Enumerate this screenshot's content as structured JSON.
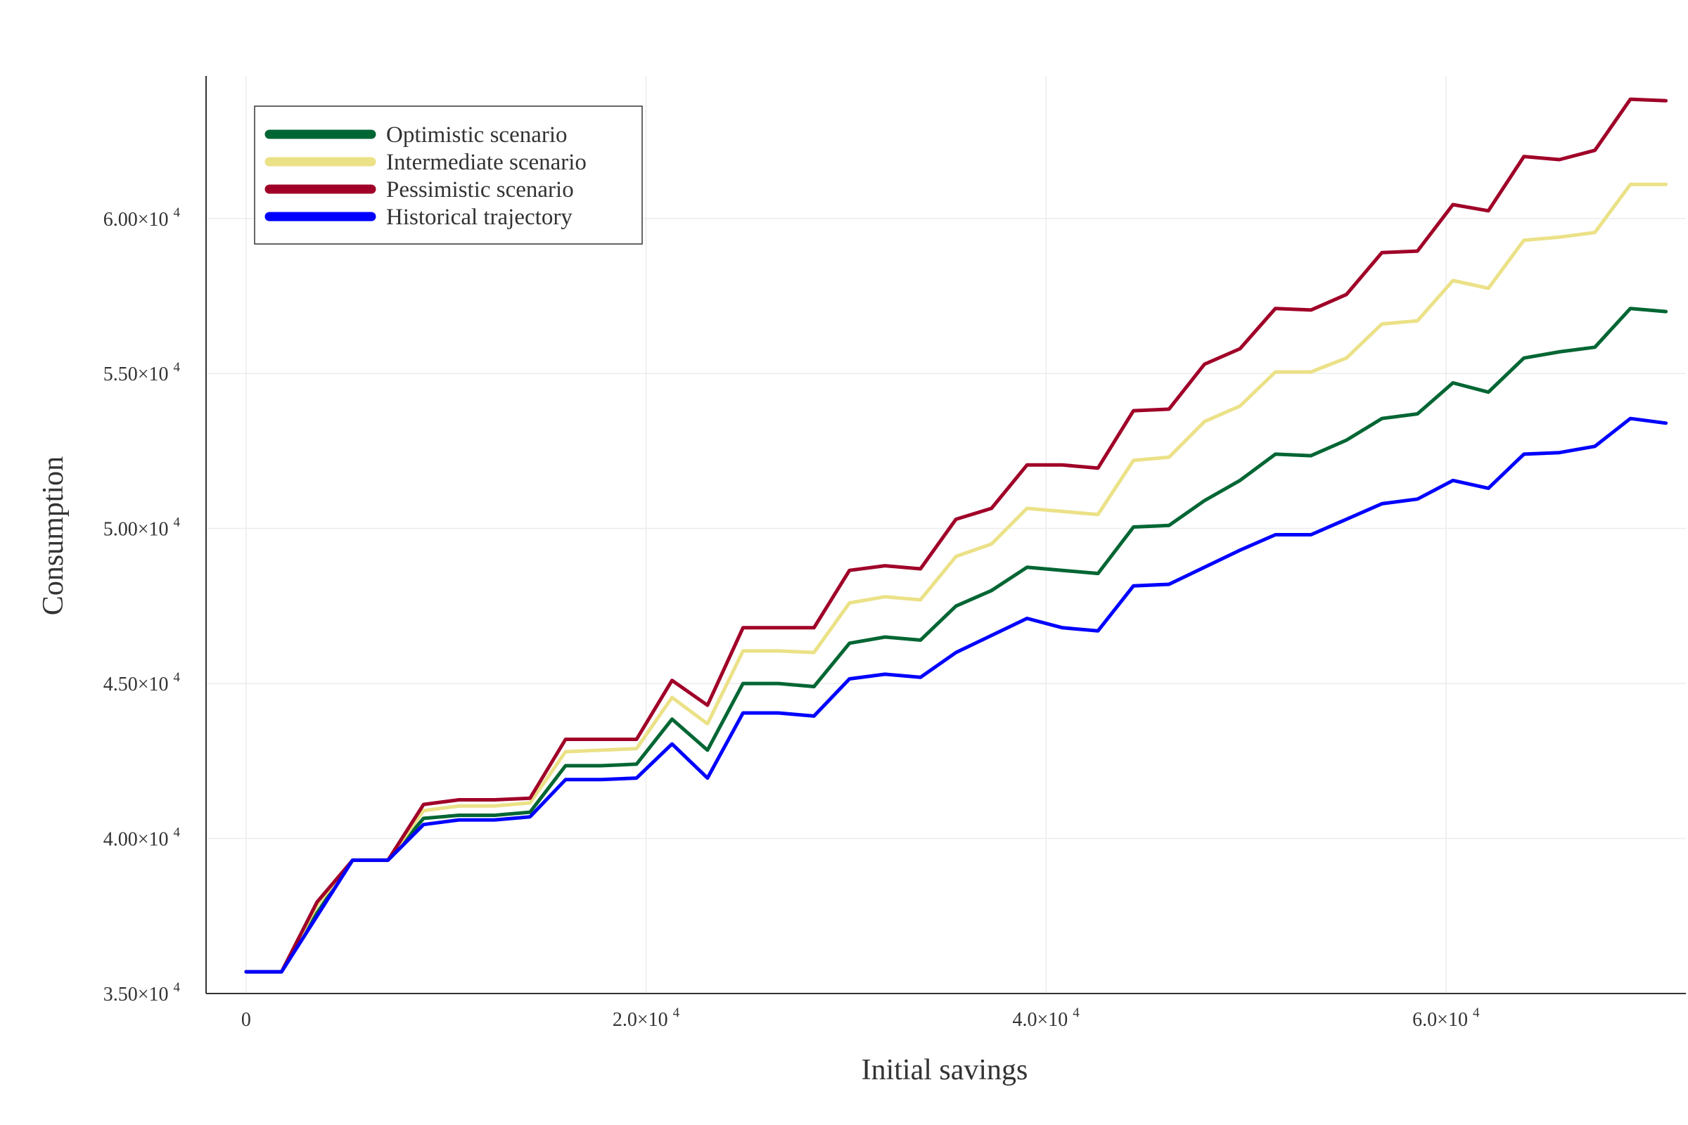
{
  "chart_data": {
    "type": "line",
    "title": "",
    "xlabel": "Initial savings",
    "ylabel": "Consumption",
    "xlim": [
      -2000,
      72000
    ],
    "ylim": [
      35000,
      64600
    ],
    "grid": true,
    "legend_position": "top-left",
    "x_ticks": [
      {
        "value": 0,
        "mantissa": "0",
        "exponent": ""
      },
      {
        "value": 20000,
        "mantissa": "2.0×10",
        "exponent": "4"
      },
      {
        "value": 40000,
        "mantissa": "4.0×10",
        "exponent": "4"
      },
      {
        "value": 60000,
        "mantissa": "6.0×10",
        "exponent": "4"
      }
    ],
    "y_ticks": [
      {
        "value": 35000,
        "mantissa": "3.50×10",
        "exponent": "4"
      },
      {
        "value": 40000,
        "mantissa": "4.00×10",
        "exponent": "4"
      },
      {
        "value": 45000,
        "mantissa": "4.50×10",
        "exponent": "4"
      },
      {
        "value": 50000,
        "mantissa": "5.00×10",
        "exponent": "4"
      },
      {
        "value": 55000,
        "mantissa": "5.50×10",
        "exponent": "4"
      },
      {
        "value": 60000,
        "mantissa": "6.00×10",
        "exponent": "4"
      }
    ],
    "x": [
      0,
      1775,
      3550,
      5325,
      7100,
      8875,
      10650,
      12425,
      14200,
      15975,
      17750,
      19525,
      21300,
      23075,
      24850,
      26625,
      28400,
      30175,
      31950,
      33725,
      35500,
      37275,
      39050,
      40825,
      42600,
      44375,
      46150,
      47925,
      49700,
      51475,
      53250,
      55025,
      56800,
      58575,
      60350,
      62125,
      63900,
      65675,
      67450,
      69225,
      71000
    ],
    "series": [
      {
        "name": "Optimistic scenario",
        "color": "#006633",
        "values": [
          35700,
          35700,
          37600,
          39300,
          39300,
          40650,
          40750,
          40750,
          40850,
          42350,
          42350,
          42400,
          43850,
          42850,
          45000,
          45000,
          44900,
          46300,
          46500,
          46400,
          47500,
          48000,
          48750,
          48650,
          48550,
          50050,
          50100,
          50900,
          51550,
          52400,
          52350,
          52850,
          53550,
          53700,
          54700,
          54400,
          55500,
          55700,
          55850,
          57100,
          57000
        ]
      },
      {
        "name": "Intermediate scenario",
        "color": "#ebe187",
        "values": [
          35700,
          35700,
          37850,
          39300,
          39300,
          40900,
          41050,
          41050,
          41150,
          42800,
          42850,
          42900,
          44550,
          43700,
          46050,
          46050,
          46000,
          47600,
          47800,
          47700,
          49100,
          49500,
          50650,
          50550,
          50450,
          52200,
          52300,
          53450,
          53950,
          55050,
          55050,
          55500,
          56600,
          56700,
          58000,
          57750,
          59300,
          59400,
          59550,
          61100,
          61100
        ]
      },
      {
        "name": "Pessimistic scenario",
        "color": "#a00028",
        "values": [
          35700,
          35700,
          37950,
          39300,
          39300,
          41100,
          41250,
          41250,
          41300,
          43200,
          43200,
          43200,
          45100,
          44300,
          46800,
          46800,
          46800,
          48650,
          48800,
          48700,
          50300,
          50650,
          52050,
          52050,
          51950,
          53800,
          53850,
          55300,
          55800,
          57100,
          57050,
          57550,
          58900,
          58950,
          60450,
          60250,
          62000,
          61900,
          62200,
          63850,
          63800
        ]
      },
      {
        "name": "Historical trajectory",
        "color": "#0000ff",
        "values": [
          35700,
          35700,
          37500,
          39300,
          39300,
          40450,
          40600,
          40600,
          40700,
          41900,
          41900,
          41950,
          43050,
          41950,
          44050,
          44050,
          43950,
          45150,
          45300,
          45200,
          46000,
          46550,
          47100,
          46800,
          46700,
          48150,
          48200,
          48750,
          49300,
          49800,
          49800,
          50300,
          50800,
          50950,
          51550,
          51300,
          52400,
          52450,
          52650,
          53550,
          53400
        ]
      }
    ]
  }
}
